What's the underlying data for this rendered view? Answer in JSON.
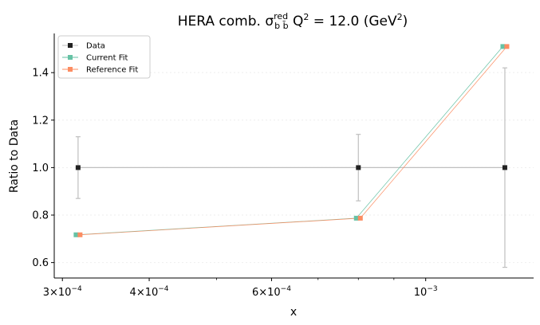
{
  "chart_data": {
    "type": "line",
    "title": {
      "prefix": "HERA comb. σ",
      "superscript": "red",
      "subscript": "b b̄",
      "q_part": " Q",
      "q_exponent": "2",
      "value_part": " = 12.0 (GeV",
      "unit_exponent": "2",
      "close": ")"
    },
    "xlabel": "x",
    "ylabel": "Ratio to Data",
    "x_scale": "log",
    "xlim": [
      0.000292,
      0.00143
    ],
    "ylim": [
      0.535,
      1.565
    ],
    "x_ticks": [
      {
        "value": 0.0003,
        "mantissa": "3",
        "exponent": "−4"
      },
      {
        "value": 0.0004,
        "mantissa": "4",
        "exponent": "−4"
      },
      {
        "value": 0.0006,
        "mantissa": "6",
        "exponent": "−4"
      },
      {
        "value": 0.001,
        "mantissa": "",
        "exponent": "−3"
      }
    ],
    "y_ticks": [
      "0.6",
      "0.8",
      "1.0",
      "1.2",
      "1.4"
    ],
    "grid": true,
    "legend_position": "top-left",
    "series": [
      {
        "name": "Data",
        "color": "#222222",
        "line_color": "#bfbfbf",
        "x": [
          0.000316,
          0.0008,
          0.0013
        ],
        "y": [
          1.0,
          1.0,
          1.0
        ],
        "yerr": [
          0.13,
          0.14,
          0.42
        ]
      },
      {
        "name": "Current Fit",
        "color": "#66c2a5",
        "x": [
          0.000316,
          0.0008,
          0.0013
        ],
        "y": [
          0.717,
          0.787,
          1.51
        ],
        "marker_shift": -1
      },
      {
        "name": "Reference Fit",
        "color": "#fc8d62",
        "x": [
          0.000316,
          0.0008,
          0.0013
        ],
        "y": [
          0.717,
          0.787,
          1.51
        ],
        "marker_shift": 1
      }
    ]
  }
}
